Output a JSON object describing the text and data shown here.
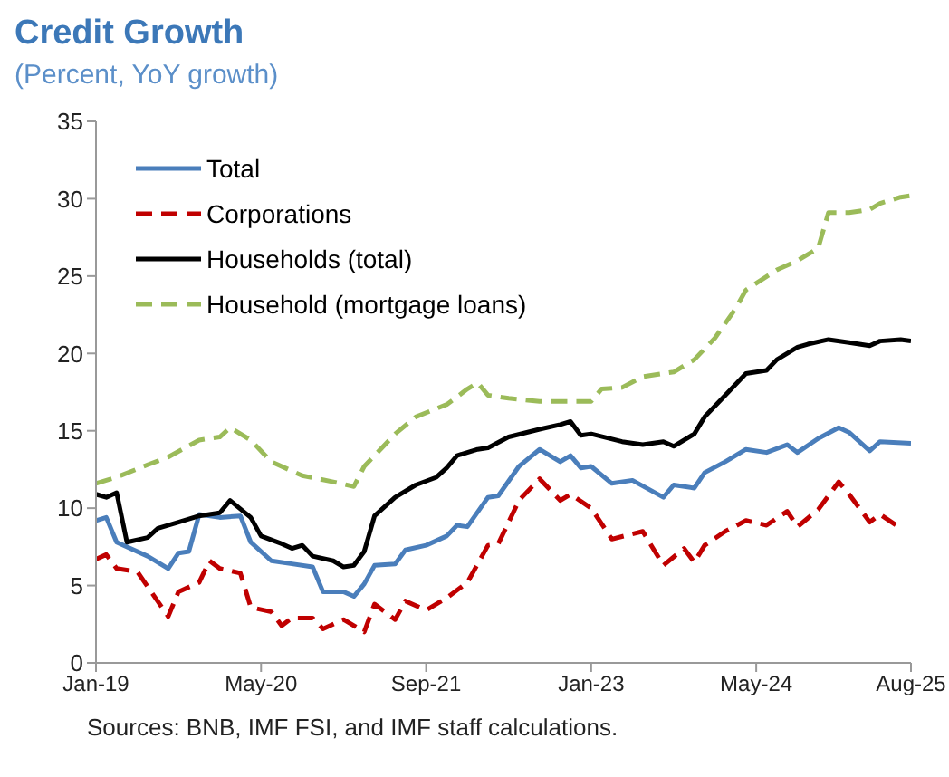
{
  "chart_data": {
    "type": "line",
    "title": "Credit Growth",
    "subtitle": "(Percent, YoY growth)",
    "annotations": [
      "Sources: BNB, IMF FSI, and IMF staff calculations."
    ],
    "xlim": [
      "2019-01",
      "2025-08"
    ],
    "xticks": [
      {
        "value": "2019-01",
        "label": "Jan-19"
      },
      {
        "value": "2020-05",
        "label": "May-20"
      },
      {
        "value": "2021-09",
        "label": "Sep-21"
      },
      {
        "value": "2023-01",
        "label": "Jan-23"
      },
      {
        "value": "2024-05",
        "label": "May-24"
      },
      {
        "value": "2025-08",
        "label": "Aug-25"
      }
    ],
    "ylim": [
      0,
      35
    ],
    "yticks": [
      0,
      5,
      10,
      15,
      20,
      25,
      30,
      35
    ],
    "legend": "top left",
    "marker": "none",
    "series": [
      {
        "name": "Total",
        "color": "#4a7ebb",
        "line_style": "solid",
        "x": [
          "2019-01",
          "2019-02",
          "2019-03",
          "2019-06",
          "2019-08",
          "2019-09",
          "2019-10",
          "2019-11",
          "2020-01",
          "2020-03",
          "2020-04",
          "2020-06",
          "2020-08",
          "2020-10",
          "2020-11",
          "2021-01",
          "2021-02",
          "2021-03",
          "2021-04",
          "2021-06",
          "2021-07",
          "2021-09",
          "2021-11",
          "2021-12",
          "2022-01",
          "2022-03",
          "2022-04",
          "2022-06",
          "2022-08",
          "2022-10",
          "2022-11",
          "2022-12",
          "2023-01",
          "2023-03",
          "2023-05",
          "2023-08",
          "2023-09",
          "2023-11",
          "2023-12",
          "2024-02",
          "2024-04",
          "2024-06",
          "2024-08",
          "2024-09",
          "2024-11",
          "2025-01",
          "2025-02",
          "2025-04",
          "2025-05",
          "2025-08"
        ],
        "values": [
          9.2,
          9.4,
          7.8,
          6.9,
          6.1,
          7.1,
          7.2,
          9.6,
          9.4,
          9.5,
          7.8,
          6.6,
          6.4,
          6.2,
          4.6,
          4.6,
          4.3,
          5.1,
          6.3,
          6.4,
          7.3,
          7.6,
          8.2,
          8.9,
          8.8,
          10.7,
          10.8,
          12.7,
          13.8,
          13.0,
          13.4,
          12.6,
          12.7,
          11.6,
          11.8,
          10.7,
          11.5,
          11.3,
          12.3,
          13.0,
          13.8,
          13.6,
          14.1,
          13.6,
          14.5,
          15.2,
          14.9,
          13.7,
          14.3,
          14.2
        ]
      },
      {
        "name": "Corporations",
        "color": "#c00000",
        "line_style": "dashed",
        "x": [
          "2019-01",
          "2019-02",
          "2019-03",
          "2019-05",
          "2019-08",
          "2019-09",
          "2019-11",
          "2019-12",
          "2020-01",
          "2020-03",
          "2020-04",
          "2020-06",
          "2020-07",
          "2020-08",
          "2020-10",
          "2020-11",
          "2021-01",
          "2021-03",
          "2021-04",
          "2021-06",
          "2021-07",
          "2021-09",
          "2021-11",
          "2022-01",
          "2022-03",
          "2022-04",
          "2022-06",
          "2022-08",
          "2022-10",
          "2022-11",
          "2023-01",
          "2023-03",
          "2023-06",
          "2023-08",
          "2023-10",
          "2023-11",
          "2023-12",
          "2024-02",
          "2024-04",
          "2024-06",
          "2024-08",
          "2024-09",
          "2024-11",
          "2025-01",
          "2025-02",
          "2025-04",
          "2025-05",
          "2025-07"
        ],
        "values": [
          6.7,
          7.0,
          6.1,
          5.9,
          3.0,
          4.6,
          5.2,
          6.6,
          6.1,
          5.8,
          3.6,
          3.3,
          2.4,
          2.9,
          2.9,
          2.2,
          2.8,
          2.0,
          3.8,
          2.8,
          4.0,
          3.4,
          4.2,
          5.2,
          7.6,
          7.7,
          10.5,
          11.9,
          10.5,
          10.9,
          10.0,
          8.0,
          8.5,
          6.3,
          7.4,
          6.5,
          7.6,
          8.5,
          9.2,
          8.9,
          9.8,
          8.8,
          9.9,
          11.7,
          10.9,
          9.1,
          9.6,
          8.7
        ]
      },
      {
        "name": "Households (total)",
        "color": "#000000",
        "line_style": "solid",
        "x": [
          "2019-01",
          "2019-02",
          "2019-03",
          "2019-04",
          "2019-06",
          "2019-07",
          "2019-09",
          "2019-11",
          "2020-01",
          "2020-02",
          "2020-04",
          "2020-05",
          "2020-07",
          "2020-08",
          "2020-09",
          "2020-10",
          "2020-12",
          "2021-01",
          "2021-02",
          "2021-03",
          "2021-04",
          "2021-06",
          "2021-08",
          "2021-10",
          "2021-11",
          "2021-12",
          "2022-02",
          "2022-03",
          "2022-05",
          "2022-08",
          "2022-10",
          "2022-11",
          "2022-12",
          "2023-01",
          "2023-04",
          "2023-06",
          "2023-08",
          "2023-09",
          "2023-11",
          "2023-12",
          "2024-02",
          "2024-04",
          "2024-06",
          "2024-07",
          "2024-09",
          "2024-10",
          "2024-12",
          "2025-02",
          "2025-04",
          "2025-05",
          "2025-07",
          "2025-08"
        ],
        "values": [
          10.9,
          10.7,
          11.0,
          7.8,
          8.1,
          8.7,
          9.1,
          9.5,
          9.7,
          10.5,
          9.4,
          8.2,
          7.7,
          7.4,
          7.6,
          6.9,
          6.6,
          6.2,
          6.3,
          7.2,
          9.5,
          10.7,
          11.5,
          12.0,
          12.6,
          13.4,
          13.8,
          13.9,
          14.6,
          15.1,
          15.4,
          15.6,
          14.7,
          14.8,
          14.3,
          14.1,
          14.3,
          14.0,
          14.8,
          15.9,
          17.3,
          18.7,
          18.9,
          19.6,
          20.4,
          20.6,
          20.9,
          20.7,
          20.5,
          20.8,
          20.9,
          20.8
        ]
      },
      {
        "name": "Household (mortgage loans)",
        "color": "#9bbb59",
        "line_style": "dashed",
        "x": [
          "2019-01",
          "2019-03",
          "2019-06",
          "2019-08",
          "2019-11",
          "2020-01",
          "2020-02",
          "2020-04",
          "2020-06",
          "2020-09",
          "2020-12",
          "2021-02",
          "2021-03",
          "2021-06",
          "2021-08",
          "2021-11",
          "2022-01",
          "2022-02",
          "2022-03",
          "2022-05",
          "2022-08",
          "2022-11",
          "2023-01",
          "2023-02",
          "2023-04",
          "2023-06",
          "2023-09",
          "2023-11",
          "2024-01",
          "2024-03",
          "2024-04",
          "2024-07",
          "2024-09",
          "2024-11",
          "2024-12",
          "2025-02",
          "2025-04",
          "2025-05",
          "2025-07",
          "2025-08"
        ],
        "values": [
          11.6,
          12.0,
          12.8,
          13.3,
          14.4,
          14.6,
          15.2,
          14.4,
          13.0,
          12.1,
          11.7,
          11.4,
          12.7,
          14.8,
          15.9,
          16.7,
          17.7,
          18.1,
          17.3,
          17.1,
          16.9,
          16.9,
          16.9,
          17.7,
          17.8,
          18.5,
          18.8,
          19.6,
          21.0,
          22.9,
          24.1,
          25.4,
          26.0,
          26.8,
          29.1,
          29.1,
          29.3,
          29.7,
          30.1,
          30.2
        ]
      }
    ]
  }
}
